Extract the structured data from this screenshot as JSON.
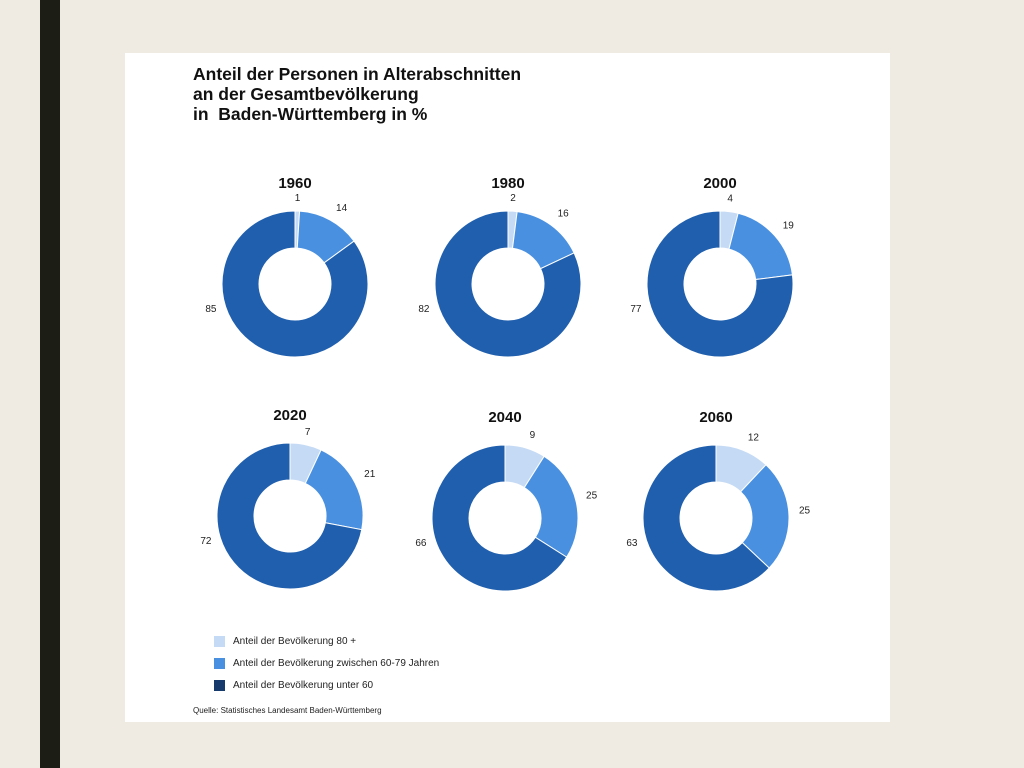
{
  "title_lines": [
    "Anteil der Personen in Alterabschnitten",
    "an der Gesamtbevölkerung",
    "in  Baden-Württemberg in %"
  ],
  "colors": {
    "80_plus": "#c5daf4",
    "60_79": "#4a90e0",
    "under_60": "#205fad",
    "legend_under_60": "#163a6b"
  },
  "chart_data": [
    {
      "type": "pie",
      "year": "1960",
      "categories": [
        "80 +",
        "60-79",
        "unter 60"
      ],
      "values": [
        1,
        14,
        85
      ]
    },
    {
      "type": "pie",
      "year": "1980",
      "categories": [
        "80 +",
        "60-79",
        "unter 60"
      ],
      "values": [
        2,
        16,
        82
      ]
    },
    {
      "type": "pie",
      "year": "2000",
      "categories": [
        "80 +",
        "60-79",
        "unter 60"
      ],
      "values": [
        4,
        19,
        77
      ]
    },
    {
      "type": "pie",
      "year": "2020",
      "categories": [
        "80 +",
        "60-79",
        "unter 60"
      ],
      "values": [
        7,
        21,
        72
      ]
    },
    {
      "type": "pie",
      "year": "2040",
      "categories": [
        "80 +",
        "60-79",
        "unter 60"
      ],
      "values": [
        9,
        25,
        66
      ]
    },
    {
      "type": "pie",
      "year": "2060",
      "categories": [
        "80 +",
        "60-79",
        "unter 60"
      ],
      "values": [
        12,
        25,
        63
      ]
    }
  ],
  "legend": [
    {
      "label": "Anteil der Bevölkerung 80 +",
      "color": "#c5daf4"
    },
    {
      "label": "Anteil der Bevölkerung zwischen 60-79 Jahren",
      "color": "#4a90e0"
    },
    {
      "label": "Anteil der Bevölkerung unter 60",
      "color": "#163a6b"
    }
  ],
  "source": "Quelle: Statistisches Landesamt Baden-Württemberg"
}
